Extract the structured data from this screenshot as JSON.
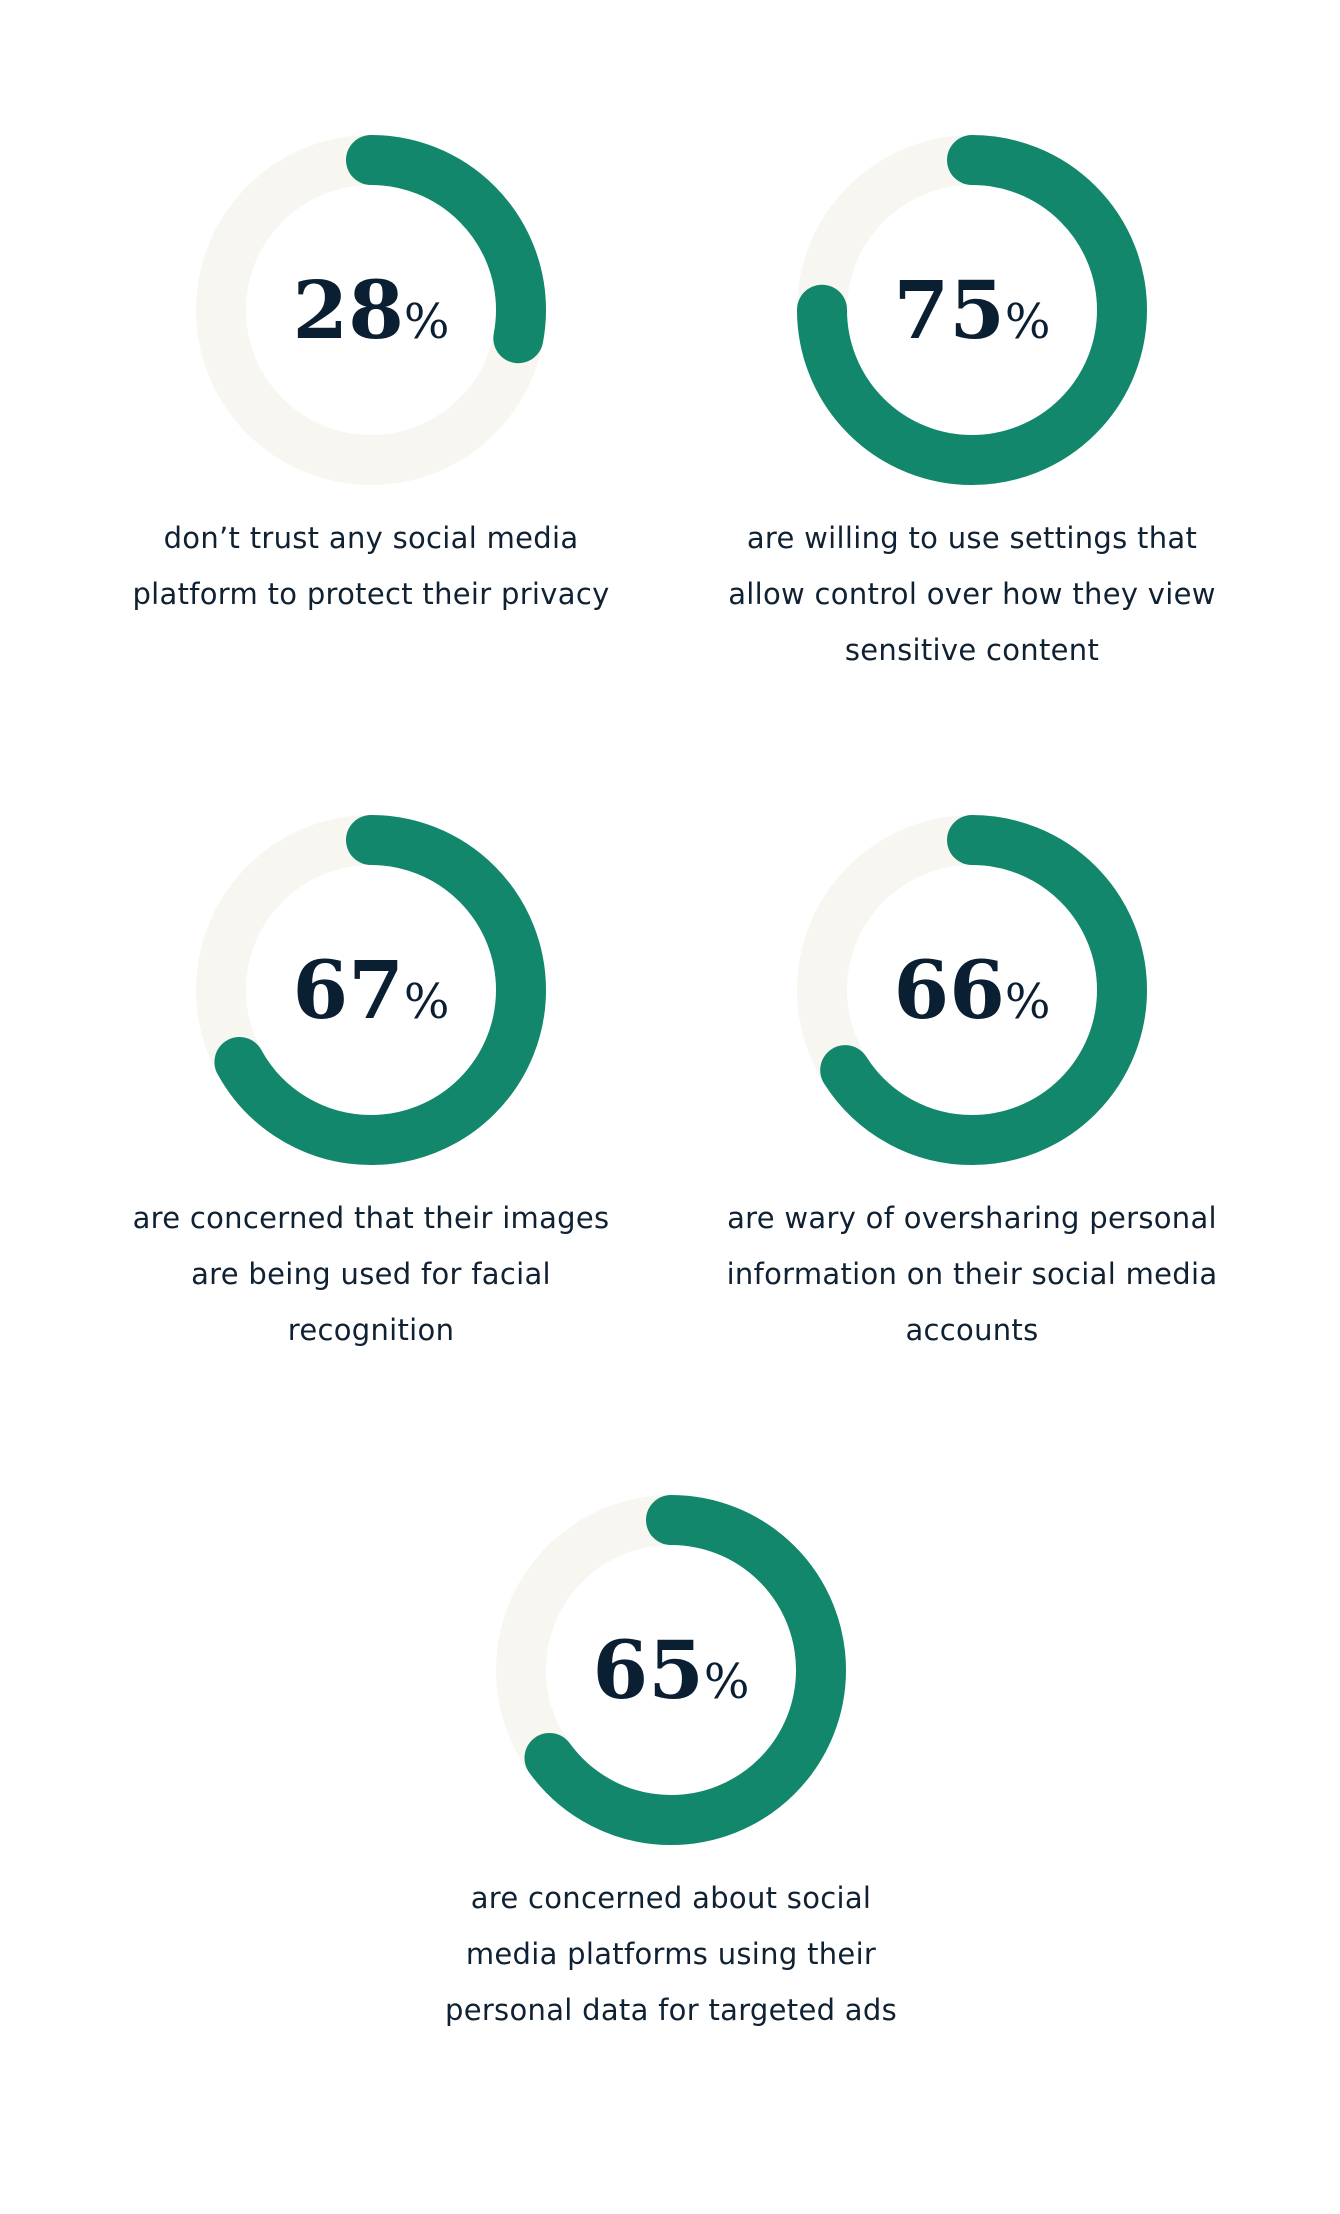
{
  "colors": {
    "accent": "#12876b",
    "track": "#f7f6f1",
    "text": "#0b1f33"
  },
  "chart_data": [
    {
      "type": "donut",
      "value": 28,
      "unit": "%",
      "caption": "don’t trust any social media platform to protect their privacy",
      "caption_lines": [
        "don’t trust any social media",
        "platform to protect their privacy"
      ]
    },
    {
      "type": "donut",
      "value": 75,
      "unit": "%",
      "caption": "are willing to use settings that allow control over how they view sensitive content",
      "caption_lines": [
        "are willing to use settings that",
        "allow control over how they view",
        "sensitive content"
      ]
    },
    {
      "type": "donut",
      "value": 67,
      "unit": "%",
      "caption": "are concerned that their images are being used for facial recognition",
      "caption_lines": [
        "are concerned that their images",
        "are being used for facial",
        "recognition"
      ]
    },
    {
      "type": "donut",
      "value": 66,
      "unit": "%",
      "caption": "are wary of oversharing personal information on their social media accounts",
      "caption_lines": [
        "are wary of oversharing personal",
        "information on their social media",
        "accounts"
      ]
    },
    {
      "type": "donut",
      "value": 65,
      "unit": "%",
      "caption": "are concerned about social media platforms using their personal data for targeted ads",
      "caption_lines": [
        "are concerned about social",
        "media platforms using their",
        "personal data for targeted ads"
      ]
    }
  ]
}
